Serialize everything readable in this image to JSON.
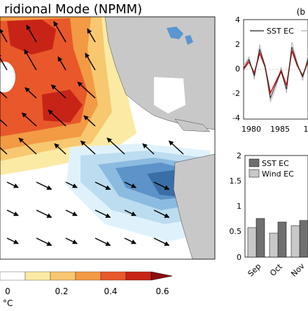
{
  "chart_data": [
    {
      "type": "heatmap",
      "title": "ridional Mode (NPMM)",
      "colorbar": {
        "ticks": [
          "0",
          "0.2",
          "0.4",
          "0.6"
        ],
        "unit": "°C",
        "colors": [
          "#ffffff",
          "#fbeaa4",
          "#f7c870",
          "#f29a44",
          "#e8582a",
          "#c72417",
          "#8e0e0e"
        ]
      },
      "colors": {
        "land": "#c8c8c8",
        "ocean": "#ffffff",
        "lakes": "#5a96d2",
        "warm": [
          "#fbeaa4",
          "#f7c870",
          "#f29a44",
          "#e8582a",
          "#c72417"
        ],
        "cool": [
          "#dff2fb",
          "#bcdcef",
          "#8bbbe0",
          "#5c93c8",
          "#3a6ea6"
        ]
      }
    },
    {
      "type": "line",
      "panel_label": "(b",
      "x": [
        1978,
        1979,
        1980,
        1981,
        1982,
        1983,
        1984,
        1985,
        1986,
        1987,
        1988,
        1989,
        1990
      ],
      "xticks": [
        "1980",
        "1985",
        "1"
      ],
      "yticks": [
        "-4",
        "-2",
        "0",
        "2",
        "4"
      ],
      "ylim": [
        -4,
        4
      ],
      "series": [
        {
          "name": "SST EC",
          "color": "#222222",
          "values": [
            0.1,
            0.8,
            -0.5,
            1.6,
            0.3,
            -2.3,
            -1.2,
            -0.2,
            -1.6,
            1.8,
            0.4,
            -0.6,
            0.8
          ]
        },
        {
          "color": "#d01818",
          "values": [
            0.0,
            0.6,
            -0.3,
            1.3,
            0.2,
            -1.9,
            -1.0,
            -0.1,
            -1.3,
            1.5,
            0.3,
            -0.5,
            0.6
          ]
        },
        {
          "color": "#b4b4b4",
          "values": [
            0.3,
            1.0,
            -0.8,
            2.0,
            0.1,
            -2.6,
            -1.5,
            0.2,
            -1.9,
            2.2,
            0.6,
            -0.9,
            1.1
          ]
        }
      ]
    },
    {
      "type": "bar",
      "categories": [
        "Sep",
        "Oct",
        "Nov"
      ],
      "ylim": [
        0,
        2
      ],
      "yticks": [
        "0",
        "0.5",
        "1",
        "1.5",
        "2"
      ],
      "series": [
        {
          "name": "SST EC",
          "color": "#707070",
          "values": [
            0.76,
            0.69,
            0.72
          ]
        },
        {
          "name": "Wind EC",
          "color": "#c8c8c8",
          "values": [
            0.58,
            0.47,
            0.62
          ]
        }
      ]
    }
  ]
}
